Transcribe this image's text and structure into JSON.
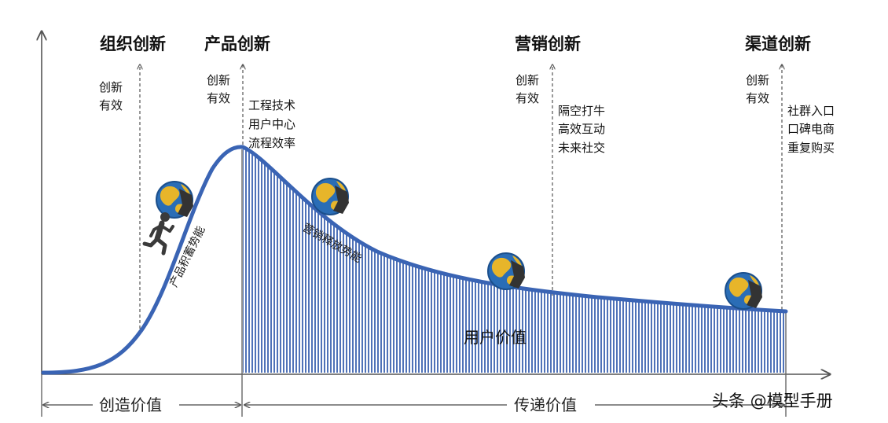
{
  "stages": [
    {
      "title": "组织创新",
      "effect": [
        "创新",
        "有效"
      ],
      "points": []
    },
    {
      "title": "产品创新",
      "effect": [
        "创新",
        "有效"
      ],
      "points": [
        "工程技术",
        "用户中心",
        "流程效率"
      ]
    },
    {
      "title": "营销创新",
      "effect": [
        "创新",
        "有效"
      ],
      "points": [
        "隔空打牛",
        "高效互动",
        "未来社交"
      ]
    },
    {
      "title": "渠道创新",
      "effect": [
        "创新",
        "有效"
      ],
      "points": [
        "社群入口",
        "口碑电商",
        "重复购买"
      ]
    }
  ],
  "curve_labels": {
    "rise": "产品积蓄势能",
    "decay": "营销释放势能"
  },
  "area_label": "用户价值",
  "spans": {
    "create": "创造价值",
    "deliver": "传递价值"
  },
  "watermark": "头条 @模型手册",
  "colors": {
    "curve": "#3a64b4",
    "fill": "#4f72b8",
    "axis": "#555555",
    "globe_ocean": "#2a6db6",
    "globe_land": "#e7b52a"
  },
  "icons": [
    "running-man-icon",
    "globe-icon"
  ]
}
